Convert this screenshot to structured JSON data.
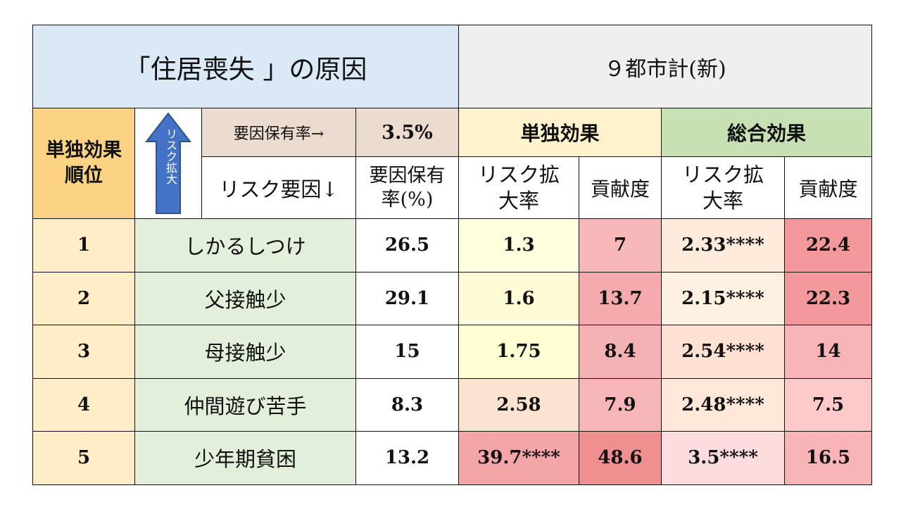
{
  "title": "「住居喪失 」の原因",
  "region": "９都市計(新)",
  "rank_header": "単独効果順位",
  "arrow_label": "リスク拡大",
  "rate_label": "要因保有率→",
  "rate_value": "3.5%",
  "factor_header": "リスク要因↓",
  "rate_col_header": "要因保有率(%)",
  "group_single": "単独効果",
  "group_total": "総合効果",
  "sub_risk": "リスク拡大率",
  "sub_contrib": "貢献度",
  "rows": [
    {
      "rank": "1",
      "factor": "しかるしつけ",
      "rate": "26.5",
      "s_risk": "1.3",
      "s_contrib": "7",
      "t_risk": "2.33****",
      "t_contrib": "22.4"
    },
    {
      "rank": "2",
      "factor": "父接触少",
      "rate": "29.1",
      "s_risk": "1.6",
      "s_contrib": "13.7",
      "t_risk": "2.15****",
      "t_contrib": "22.3"
    },
    {
      "rank": "3",
      "factor": "母接触少",
      "rate": "15",
      "s_risk": "1.75",
      "s_contrib": "8.4",
      "t_risk": "2.54****",
      "t_contrib": "14"
    },
    {
      "rank": "4",
      "factor": "仲間遊び苦手",
      "rate": "8.3",
      "s_risk": "2.58",
      "s_contrib": "7.9",
      "t_risk": "2.48****",
      "t_contrib": "7.5"
    },
    {
      "rank": "5",
      "factor": "少年期貧困",
      "rate": "13.2",
      "s_risk": "39.7****",
      "s_contrib": "48.6",
      "t_risk": "3.5****",
      "t_contrib": "16.5"
    }
  ],
  "colors": {
    "s_risk": [
      "#ffffe0",
      "#fffbd6",
      "#fffdd2",
      "#fce3d0",
      "#f4a5a8"
    ],
    "s_contrib": [
      "#f7b8b9",
      "#f5abad",
      "#f5b2b4",
      "#f7b7b8",
      "#f08f8f"
    ],
    "t_risk": [
      "#feebdc",
      "#fff1e2",
      "#fee1d2",
      "#fde8da",
      "#fcdcdc"
    ],
    "t_contrib": [
      "#f4999b",
      "#f4999b",
      "#f8b4b6",
      "#fdc9c9",
      "#f8b4b6"
    ]
  }
}
